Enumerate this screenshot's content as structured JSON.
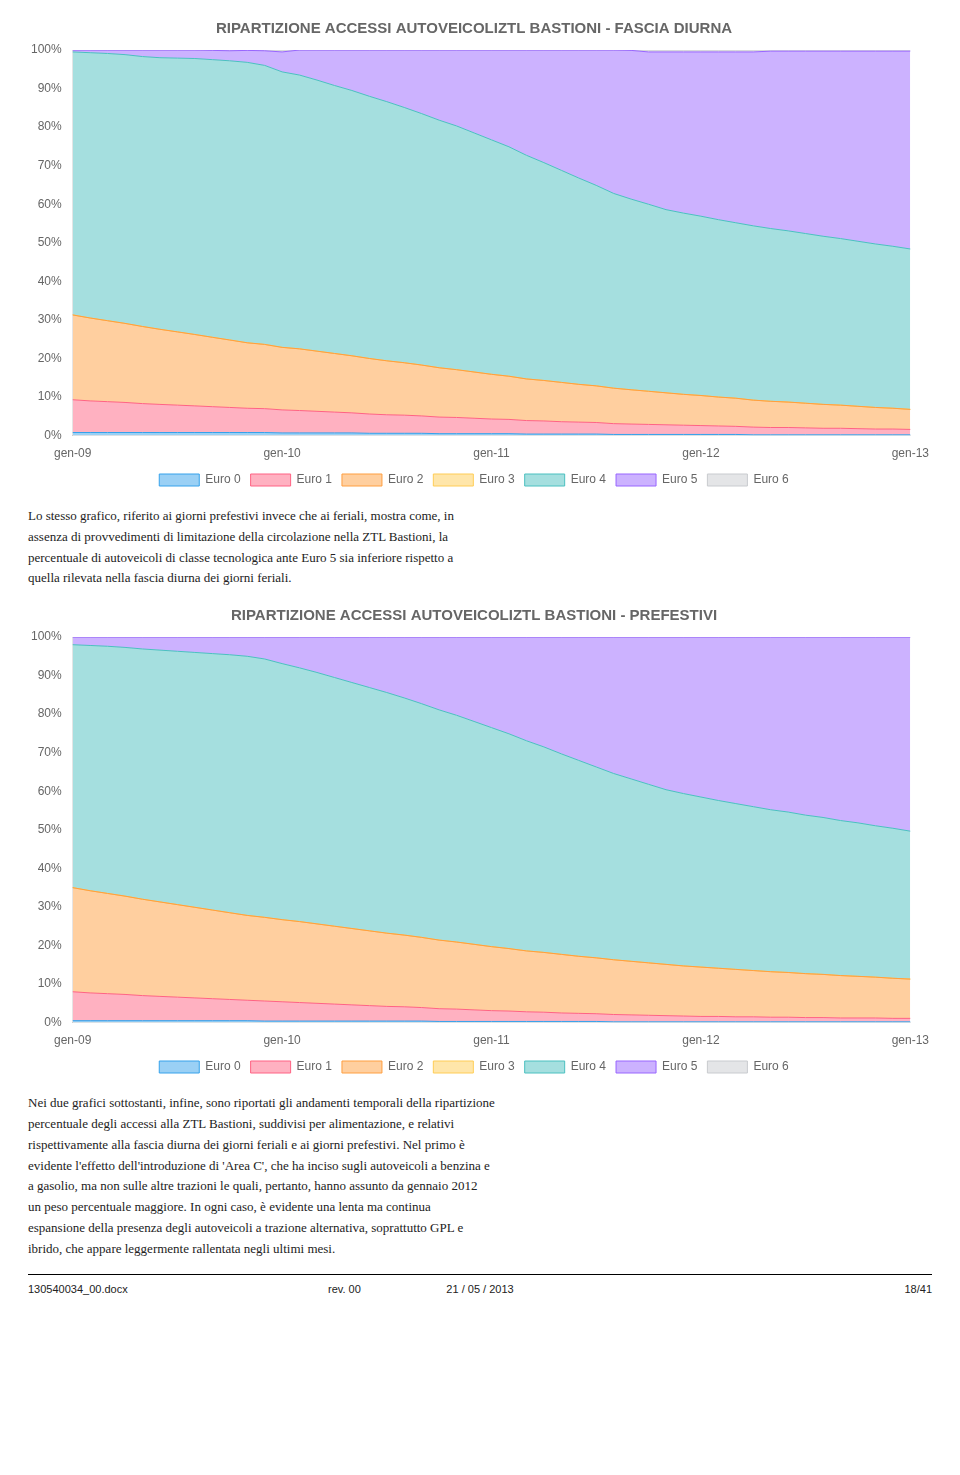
{
  "chart_data": [
    {
      "type": "area",
      "stacked": true,
      "title": "RIPARTIZIONE ACCESSI AUTOVEICOLIZTL BASTIONI - FASCIA DIURNA",
      "categories": [
        "gen-09",
        null,
        null,
        null,
        null,
        null,
        null,
        null,
        null,
        null,
        null,
        null,
        "gen-10",
        null,
        null,
        null,
        null,
        null,
        null,
        null,
        null,
        null,
        null,
        null,
        "gen-11",
        null,
        null,
        null,
        null,
        null,
        null,
        null,
        null,
        null,
        null,
        null,
        "gen-12",
        null,
        null,
        null,
        null,
        null,
        null,
        null,
        null,
        null,
        null,
        null,
        "gen-13"
      ],
      "series": [
        {
          "name": "Euro 0",
          "values": [
            0.8,
            0.8,
            0.8,
            0.8,
            0.8,
            0.799,
            0.8,
            0.8,
            0.8,
            0.8,
            0.799,
            0.798,
            0.696,
            0.7,
            0.7,
            0.7,
            0.7,
            0.6,
            0.6,
            0.6,
            0.6,
            0.5,
            0.5,
            0.5,
            0.5,
            0.5,
            0.4,
            0.4,
            0.4,
            0.4,
            0.4,
            0.3,
            0.299,
            0.3,
            0.3,
            0.3,
            0.3,
            0.3,
            0.3,
            0.2,
            0.2,
            0.2,
            0.2,
            0.2,
            0.2,
            0.2,
            0.2,
            0.2,
            0.2
          ]
        },
        {
          "name": "Euro 1",
          "values": [
            8.5,
            8.2,
            8.0,
            7.8,
            7.5,
            7.292,
            7.1,
            6.906,
            6.7,
            6.5,
            6.293,
            6.187,
            5.97,
            5.8,
            5.6,
            5.4,
            5.2,
            5.0,
            4.8,
            4.7,
            4.5,
            4.3,
            4.2,
            4.0,
            3.8,
            3.7,
            3.5,
            3.4,
            3.2,
            3.1,
            3.0,
            2.8,
            2.697,
            2.6,
            2.5,
            2.4,
            2.3,
            2.2,
            2.1,
            2.0,
            1.9,
            1.9,
            1.8,
            1.7,
            1.7,
            1.6,
            1.5,
            1.5,
            1.4
          ]
        },
        {
          "name": "Euro 2",
          "values": [
            22.0,
            21.5,
            21.0,
            20.5,
            20.0,
            19.48,
            19.0,
            18.518,
            18.0,
            17.5,
            16.983,
            16.666,
            16.218,
            16.0,
            15.6,
            15.2,
            14.8,
            14.4,
            14.0,
            13.6,
            13.2,
            12.8,
            12.4,
            12.0,
            11.6,
            11.2,
            10.8,
            10.5,
            10.2,
            9.8,
            9.5,
            9.2,
            8.891,
            8.6,
            8.3,
            8.0,
            7.8,
            7.5,
            7.3,
            7.0,
            6.8,
            6.6,
            6.4,
            6.2,
            6.0,
            5.8,
            5.6,
            5.4,
            5.2
          ]
        },
        {
          "name": "Euro 3",
          "values": [
            0.0,
            0.0,
            0.0,
            0.0,
            0.0,
            0.0,
            0.0,
            0.0,
            0.0,
            0.0,
            0.0,
            0.0,
            0.0,
            0.0,
            0.0,
            0.0,
            0.0,
            0.0,
            0.0,
            0.0,
            0.0,
            0.0,
            0.0,
            0.0,
            0.0,
            0.0,
            0.0,
            0.0,
            0.0,
            0.0,
            0.0,
            0.0,
            0.0,
            0.0,
            0.0,
            0.0,
            0.0,
            0.0,
            0.0,
            0.0,
            0.0,
            0.0,
            0.0,
            0.0,
            0.0,
            0.0,
            0.0,
            0.0,
            0.0
          ]
        },
        {
          "name": "Euro 4",
          "values": [
            68.2,
            68.8,
            69.3,
            69.7,
            70.0,
            70.429,
            71.0,
            71.571,
            72.0,
            72.4,
            72.727,
            72.355,
            71.442,
            71.0,
            70.3,
            69.5,
            68.8,
            68.0,
            67.2,
            66.2,
            65.2,
            64.2,
            63.2,
            62.0,
            60.8,
            59.5,
            58.0,
            56.5,
            55.0,
            53.5,
            52.0,
            50.5,
            49.45,
            48.5,
            47.5,
            47.0,
            46.5,
            46.0,
            45.5,
            45.2,
            44.8,
            44.4,
            44.0,
            43.6,
            43.2,
            42.8,
            42.4,
            42.0,
            41.6
          ]
        },
        {
          "name": "Euro 5",
          "values": [
            0.5,
            0.7,
            0.9,
            1.2,
            1.7,
            1.998,
            2.1,
            2.202,
            2.4,
            2.6,
            3.096,
            3.792,
            5.174,
            6.5,
            7.8,
            9.2,
            10.5,
            12.0,
            13.4,
            14.9,
            16.5,
            18.2,
            19.7,
            21.5,
            23.3,
            25.1,
            27.3,
            29.2,
            31.2,
            33.2,
            35.1,
            37.2,
            38.561,
            39.5,
            40.9,
            41.8,
            42.6,
            43.5,
            44.3,
            45.1,
            46.0,
            46.6,
            47.3,
            48.0,
            48.6,
            49.3,
            50.0,
            50.6,
            51.3
          ]
        },
        {
          "name": "Euro 6",
          "values": [
            0.0,
            0.0,
            0.0,
            0.0,
            0.0,
            0.0,
            0.0,
            0.0,
            0.1,
            0.2,
            0.099,
            0.199,
            0.497,
            0.0,
            0.0,
            0.0,
            0.0,
            0.0,
            0.0,
            0.0,
            0.0,
            0.0,
            0.0,
            0.0,
            0.0,
            0.0,
            0.0,
            0.0,
            0.0,
            0.0,
            0.0,
            0.0,
            0.099,
            0.5,
            0.5,
            0.5,
            0.5,
            0.5,
            0.5,
            0.5,
            0.3,
            0.3,
            0.3,
            0.3,
            0.3,
            0.3,
            0.3,
            0.3,
            0.3
          ]
        }
      ],
      "ylim": [
        0,
        100
      ],
      "yticks": [
        {
          "value": 0,
          "label": "0%"
        },
        {
          "value": 10,
          "label": "10%"
        },
        {
          "value": 20,
          "label": "20%"
        },
        {
          "value": 30,
          "label": "30%"
        },
        {
          "value": 40,
          "label": "40%"
        },
        {
          "value": 50,
          "label": "50%"
        },
        {
          "value": 60,
          "label": "60%"
        },
        {
          "value": 70,
          "label": "70%"
        },
        {
          "value": 80,
          "label": "80%"
        },
        {
          "value": 90,
          "label": "90%"
        },
        {
          "value": 100,
          "label": "100%"
        }
      ],
      "grid": false,
      "legend": "bottom",
      "annotations": [
        "Lo stesso grafico, riferito ai giorni prefestivi invece che ai feriali, mostra come, in\nassenza di provvedimenti di limitazione della circolazione nella ZTL Bastioni, la\npercentuale di autoveicoli di classe tecnologica ante Euro 5 sia inferiore rispetto a\nquella rilevata nella fascia diurna dei giorni feriali."
      ]
    },
    {
      "type": "area",
      "stacked": true,
      "title": "RIPARTIZIONE ACCESSI AUTOVEICOLIZTL BASTIONI - PREFESTIVI",
      "categories": [
        "gen-09",
        null,
        null,
        null,
        null,
        null,
        null,
        null,
        null,
        null,
        null,
        null,
        "gen-10",
        null,
        null,
        null,
        null,
        null,
        null,
        null,
        null,
        null,
        null,
        null,
        "gen-11",
        null,
        null,
        null,
        null,
        null,
        null,
        null,
        null,
        null,
        null,
        null,
        "gen-12",
        null,
        null,
        null,
        null,
        null,
        null,
        null,
        null,
        null,
        null,
        null,
        "gen-13"
      ],
      "series": [
        {
          "name": "Euro 0",
          "values": [
            0.5,
            0.5,
            0.5,
            0.5,
            0.5,
            0.5,
            0.5,
            0.5,
            0.5,
            0.5,
            0.5,
            0.4,
            0.4,
            0.4,
            0.4,
            0.4,
            0.4,
            0.4,
            0.4,
            0.4,
            0.4,
            0.3,
            0.3,
            0.3,
            0.3,
            0.3,
            0.3,
            0.3,
            0.3,
            0.3,
            0.3,
            0.2,
            0.2,
            0.2,
            0.2,
            0.2,
            0.2,
            0.2,
            0.2,
            0.2,
            0.2,
            0.2,
            0.2,
            0.2,
            0.2,
            0.2,
            0.199,
            0.2,
            0.199
          ]
        },
        {
          "name": "Euro 1",
          "values": [
            7.5,
            7.2,
            7.0,
            6.8,
            6.5,
            6.3,
            6.1,
            5.9,
            5.7,
            5.5,
            5.3,
            5.2,
            5.0,
            4.8,
            4.6,
            4.4,
            4.2,
            4.0,
            3.8,
            3.7,
            3.5,
            3.3,
            3.2,
            3.0,
            2.8,
            2.7,
            2.5,
            2.4,
            2.2,
            2.1,
            2.0,
            1.9,
            1.8,
            1.7,
            1.6,
            1.5,
            1.4,
            1.4,
            1.3,
            1.3,
            1.2,
            1.2,
            1.1,
            1.1,
            1.0,
            1.0,
            0.999,
            0.9,
            0.899
          ]
        },
        {
          "name": "Euro 2",
          "values": [
            27.0,
            26.5,
            26.0,
            25.5,
            25.0,
            24.5,
            24.0,
            23.5,
            23.0,
            22.5,
            22.0,
            21.7,
            21.3,
            21.0,
            20.6,
            20.2,
            19.8,
            19.4,
            19.0,
            18.6,
            18.2,
            17.8,
            17.4,
            17.0,
            16.6,
            16.2,
            15.8,
            15.5,
            15.2,
            14.8,
            14.5,
            14.2,
            13.9,
            13.6,
            13.3,
            13.0,
            12.8,
            12.5,
            12.3,
            12.0,
            11.8,
            11.6,
            11.4,
            11.2,
            11.0,
            10.8,
            10.589,
            10.4,
            10.189
          ]
        },
        {
          "name": "Euro 3",
          "values": [
            0.0,
            0.0,
            0.0,
            0.0,
            0.0,
            0.0,
            0.0,
            0.0,
            0.0,
            0.0,
            0.0,
            0.0,
            0.0,
            0.0,
            0.0,
            0.0,
            0.0,
            0.0,
            0.0,
            0.0,
            0.0,
            0.0,
            0.0,
            0.0,
            0.0,
            0.0,
            0.0,
            0.0,
            0.0,
            0.0,
            0.0,
            0.0,
            0.0,
            0.0,
            0.0,
            0.0,
            0.0,
            0.0,
            0.0,
            0.0,
            0.0,
            0.0,
            0.0,
            0.0,
            0.0,
            0.0,
            0.0,
            0.0,
            0.0
          ]
        },
        {
          "name": "Euro 4",
          "values": [
            63.0,
            63.6,
            64.1,
            64.5,
            64.9,
            65.3,
            65.7,
            66.1,
            66.5,
            66.9,
            67.2,
            67.0,
            66.4,
            65.8,
            65.2,
            64.5,
            63.8,
            63.1,
            62.4,
            61.5,
            60.6,
            59.7,
            58.8,
            57.8,
            56.8,
            55.7,
            54.5,
            53.3,
            52.0,
            50.8,
            49.5,
            48.3,
            47.3,
            46.3,
            45.3,
            44.7,
            44.1,
            43.5,
            43.0,
            42.5,
            42.0,
            41.6,
            41.1,
            40.7,
            40.2,
            39.8,
            39.26,
            38.9,
            38.361
          ]
        },
        {
          "name": "Euro 5",
          "values": [
            2.0,
            2.2,
            2.4,
            2.7,
            3.1,
            3.4,
            3.7,
            4.0,
            4.3,
            4.6,
            5.0,
            5.7,
            6.9,
            8.0,
            9.2,
            10.5,
            11.8,
            13.1,
            14.4,
            15.8,
            17.3,
            18.9,
            20.3,
            21.9,
            23.5,
            25.1,
            26.9,
            28.5,
            30.3,
            32.0,
            33.7,
            35.4,
            36.8,
            38.2,
            39.6,
            40.6,
            41.5,
            42.4,
            43.2,
            44.0,
            44.8,
            45.4,
            46.2,
            46.8,
            47.6,
            48.2,
            48.951,
            49.6,
            50.349
          ]
        },
        {
          "name": "Euro 6",
          "values": [
            0.0,
            0.0,
            0.0,
            0.0,
            0.0,
            0.0,
            0.0,
            0.0,
            0.0,
            0.0,
            0.0,
            0.0,
            0.0,
            0.0,
            0.0,
            0.0,
            0.0,
            0.0,
            0.0,
            0.0,
            0.0,
            0.0,
            0.0,
            0.0,
            0.0,
            0.0,
            0.0,
            0.0,
            0.0,
            0.0,
            0.0,
            0.0,
            0.0,
            0.0,
            0.0,
            0.0,
            0.0,
            0.0,
            0.0,
            0.0,
            0.0,
            0.0,
            0.0,
            0.0,
            0.0,
            0.0,
            0.0,
            0.0,
            0.0
          ]
        }
      ],
      "ylim": [
        0,
        100
      ],
      "yticks": [
        {
          "value": 0,
          "label": "0%"
        },
        {
          "value": 10,
          "label": "10%"
        },
        {
          "value": 20,
          "label": "20%"
        },
        {
          "value": 30,
          "label": "30%"
        },
        {
          "value": 40,
          "label": "40%"
        },
        {
          "value": 50,
          "label": "50%"
        },
        {
          "value": 60,
          "label": "60%"
        },
        {
          "value": 70,
          "label": "70%"
        },
        {
          "value": 80,
          "label": "80%"
        },
        {
          "value": 90,
          "label": "90%"
        },
        {
          "value": 100,
          "label": "100%"
        }
      ],
      "grid": false,
      "legend": "bottom",
      "annotations": [
        "Nei due grafici sottostanti, infine, sono riportati gli andamenti temporali della ripartizione\npercentuale degli accessi alla ZTL Bastioni, suddivisi per alimentazione, e relativi\nrispettivamente alla fascia diurna dei giorni feriali e ai giorni prefestivi. Nel primo è\nevidente l'effetto dell'introduzione di 'Area C', che ha inciso sugli autoveicoli a benzina e\na gasolio, ma non sulle altre trazioni le quali, pertanto, hanno assunto da gennaio 2012\nun peso percentuale maggiore. In ogni caso, è evidente una lenta ma continua\nespansione della presenza degli autoveicoli a trazione alternativa, soprattutto GPL e\nibrido, che appare leggermente rallentata negli ultimi mesi."
      ]
    }
  ],
  "annotations": [
    "130540034_00.docx",
    "rev. 00",
    "21 / 05 / 2013",
    "18/41"
  ]
}
